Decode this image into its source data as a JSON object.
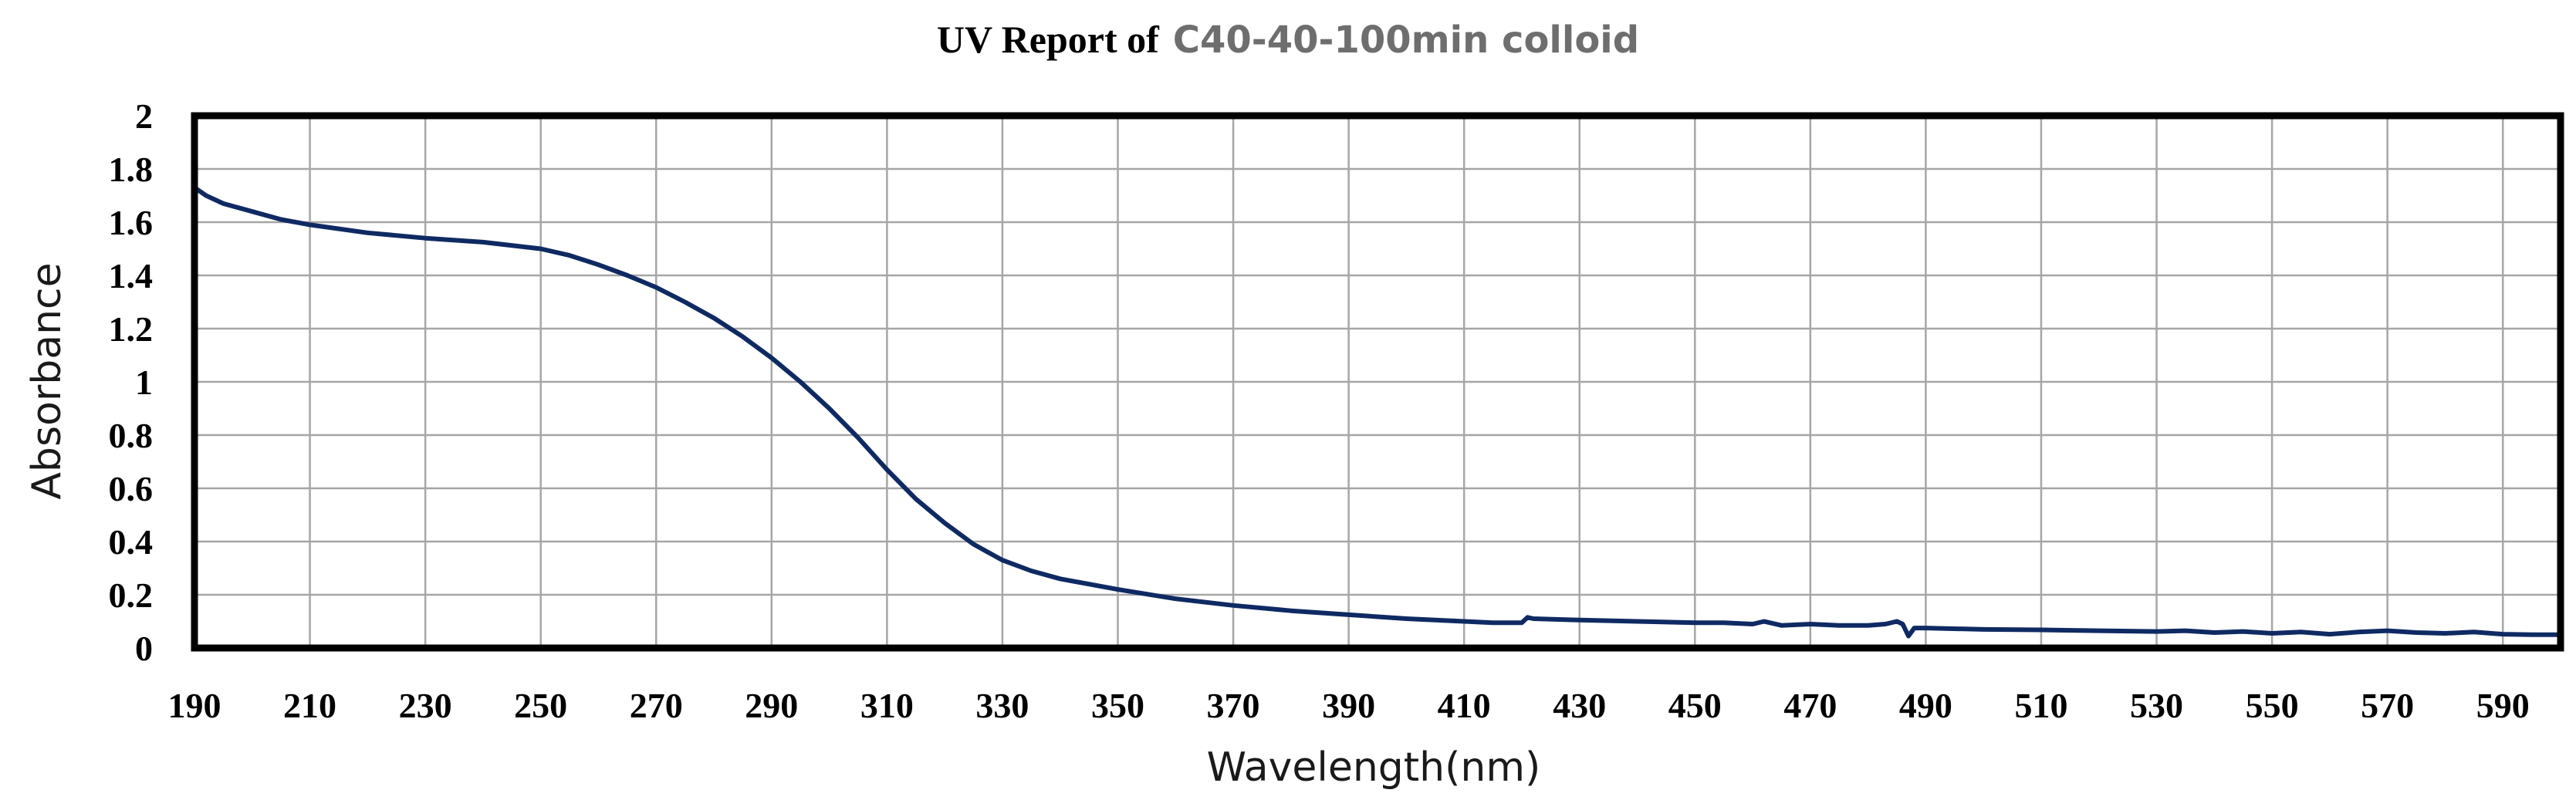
{
  "chart_data": {
    "type": "line",
    "title": {
      "main": "UV Report of",
      "sample": "C40-40-100min colloid"
    },
    "xlabel": "Wavelength(nm)",
    "ylabel": "Absorbance",
    "xlim": [
      190,
      600
    ],
    "ylim": [
      0,
      2
    ],
    "xticks": [
      190,
      210,
      230,
      250,
      270,
      290,
      310,
      330,
      350,
      370,
      390,
      410,
      430,
      450,
      470,
      490,
      510,
      530,
      550,
      570,
      590
    ],
    "yticks": [
      0,
      0.2,
      0.4,
      0.6,
      0.8,
      1,
      1.2,
      1.4,
      1.6,
      1.8,
      2
    ],
    "ytick_labels": [
      "0",
      "0.2",
      "0.4",
      "0.6",
      "0.8",
      "1",
      "1.2",
      "1.4",
      "1.6",
      "1.8",
      "2"
    ],
    "grid": true,
    "legend": "none",
    "series": [
      {
        "name": "C40-40-100min colloid",
        "color": "#0f2a63",
        "x": [
          190,
          192,
          195,
          200,
          205,
          210,
          220,
          230,
          240,
          250,
          255,
          260,
          265,
          270,
          275,
          280,
          285,
          290,
          295,
          300,
          305,
          310,
          315,
          320,
          325,
          330,
          335,
          340,
          350,
          360,
          370,
          380,
          390,
          400,
          410,
          415,
          420,
          421,
          422,
          430,
          440,
          450,
          455,
          460,
          462,
          465,
          470,
          475,
          480,
          483,
          485,
          486,
          487,
          488,
          490,
          500,
          510,
          520,
          530,
          535,
          540,
          545,
          550,
          555,
          560,
          565,
          570,
          575,
          580,
          585,
          590,
          595,
          600
        ],
        "y": [
          1.73,
          1.7,
          1.67,
          1.64,
          1.61,
          1.59,
          1.56,
          1.54,
          1.525,
          1.5,
          1.475,
          1.44,
          1.4,
          1.355,
          1.3,
          1.24,
          1.17,
          1.09,
          1.0,
          0.9,
          0.79,
          0.67,
          0.56,
          0.47,
          0.39,
          0.33,
          0.29,
          0.26,
          0.22,
          0.185,
          0.16,
          0.14,
          0.125,
          0.11,
          0.1,
          0.095,
          0.095,
          0.115,
          0.11,
          0.105,
          0.1,
          0.095,
          0.095,
          0.09,
          0.1,
          0.085,
          0.09,
          0.085,
          0.085,
          0.09,
          0.1,
          0.09,
          0.045,
          0.075,
          0.075,
          0.07,
          0.068,
          0.065,
          0.062,
          0.065,
          0.058,
          0.062,
          0.055,
          0.06,
          0.052,
          0.06,
          0.065,
          0.058,
          0.055,
          0.06,
          0.052,
          0.05,
          0.05
        ]
      }
    ]
  }
}
